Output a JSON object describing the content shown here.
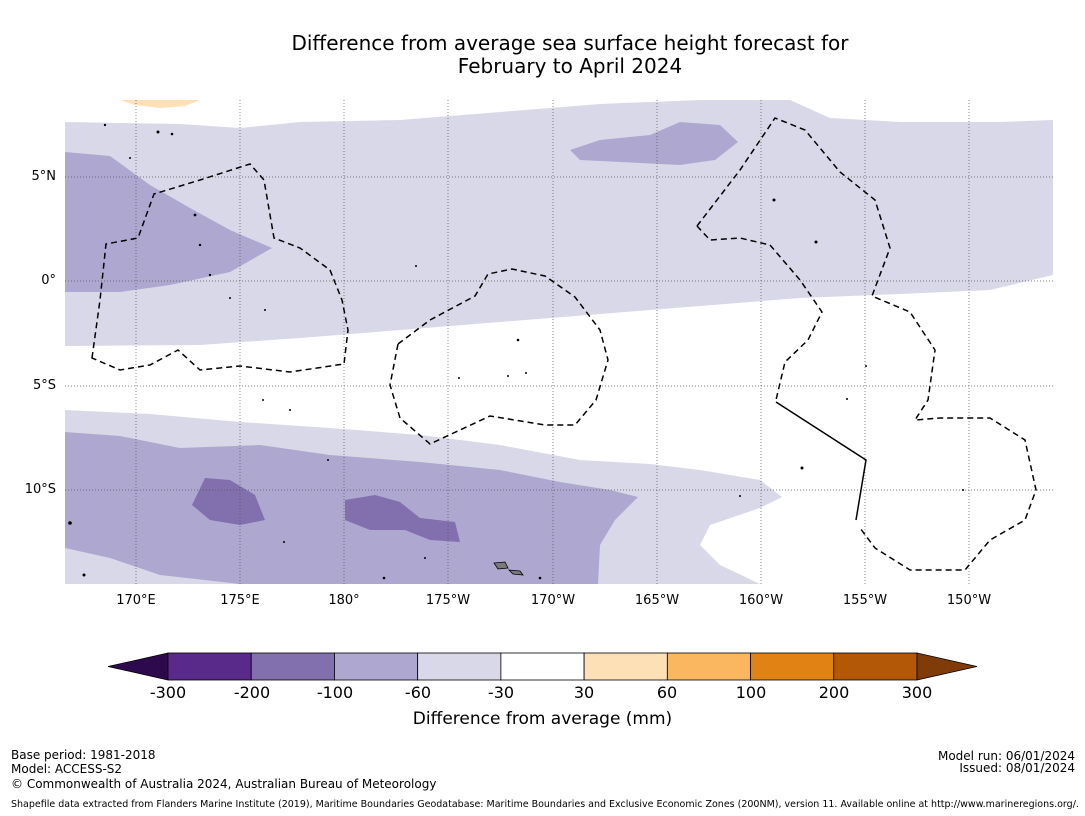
{
  "title_line1": "Difference from average sea surface height forecast for",
  "title_line2": "February to April 2024",
  "lat_labels": [
    "5°N",
    "0°",
    "5°S",
    "10°S"
  ],
  "lon_labels": [
    "170°E",
    "175°E",
    "180°",
    "175°W",
    "170°W",
    "165°W",
    "160°W",
    "155°W",
    "150°W"
  ],
  "colorbar": {
    "label": "Difference from average (mm)",
    "ticks": [
      "-300",
      "-200",
      "-100",
      "-60",
      "-30",
      "30",
      "60",
      "100",
      "200",
      "300"
    ],
    "colors": [
      "#2d0a4e",
      "#5a2a8a",
      "#8170ad",
      "#aea8d1",
      "#d8d8e9",
      "#ffffff",
      "#fee0b6",
      "#fbb760",
      "#e08214",
      "#b35806",
      "#7f3b08"
    ]
  },
  "footer": {
    "base_period": "Base period: 1981-2018",
    "model": "Model: ACCESS-S2",
    "copyright": "© Commonwealth of Australia 2024, Australian Bureau of Meteorology",
    "model_run": "Model run: 06/01/2024",
    "issued": "Issued: 08/01/2024",
    "shapefile_note": "Shapefile data extracted from Flanders Marine Institute (2019), Maritime Boundaries Geodatabase: Maritime Boundaries and Exclusive Economic Zones (200NM), version 11. Available online at http://www.marineregions.org/."
  }
}
